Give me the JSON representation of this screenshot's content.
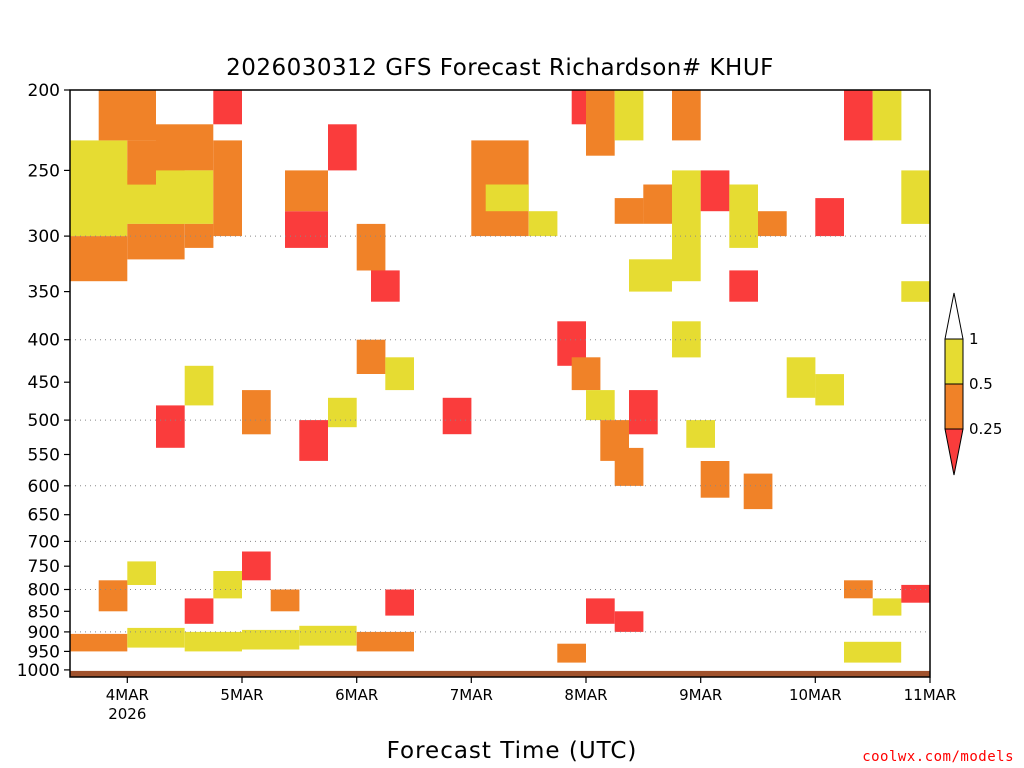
{
  "chart_data": {
    "type": "heatmap",
    "title": "2026030312 GFS Forecast Richardson# KHUF",
    "xlabel": "Forecast Time (UTC)",
    "ylabel": "",
    "x_ticks": [
      {
        "label": "4MAR",
        "sublabel": "2026",
        "hours": 12
      },
      {
        "label": "5MAR",
        "sublabel": "",
        "hours": 36
      },
      {
        "label": "6MAR",
        "sublabel": "",
        "hours": 60
      },
      {
        "label": "7MAR",
        "sublabel": "",
        "hours": 84
      },
      {
        "label": "8MAR",
        "sublabel": "",
        "hours": 108
      },
      {
        "label": "9MAR",
        "sublabel": "",
        "hours": 132
      },
      {
        "label": "10MAR",
        "sublabel": "",
        "hours": 156
      },
      {
        "label": "11MAR",
        "sublabel": "",
        "hours": 180
      }
    ],
    "x_range_hours": [
      0,
      180
    ],
    "y_ticks": [
      200,
      250,
      300,
      350,
      400,
      450,
      500,
      550,
      600,
      650,
      700,
      750,
      800,
      850,
      900,
      950,
      1000
    ],
    "y_range_hpa": [
      200,
      1020
    ],
    "y_scale": "log-pressure (inverted)",
    "dotted_gridlines_hpa": [
      300,
      400,
      500,
      600,
      700,
      800,
      900
    ],
    "legend": {
      "placement": "right",
      "bins": [
        {
          "label": "1",
          "color": "#ffffff",
          "range": [
            1,
            null
          ]
        },
        {
          "label": "0.5",
          "color": "#e6dc32",
          "range": [
            0.5,
            1
          ]
        },
        {
          "label": "0.25",
          "color": "#f08228",
          "range": [
            0.25,
            0.5
          ]
        },
        {
          "label": "",
          "color": "#fa3c3c",
          "range": [
            null,
            0.25
          ]
        }
      ]
    },
    "ground_color": "#a0522d",
    "cells": [
      [
        0,
        12,
        230,
        300,
        2
      ],
      [
        0,
        12,
        300,
        340,
        1
      ],
      [
        6,
        18,
        200,
        230,
        1
      ],
      [
        9,
        24,
        250,
        290,
        2
      ],
      [
        12,
        24,
        230,
        260,
        1
      ],
      [
        12,
        24,
        290,
        320,
        1
      ],
      [
        18,
        30,
        220,
        250,
        1
      ],
      [
        18,
        30,
        250,
        290,
        2
      ],
      [
        24,
        30,
        290,
        310,
        1
      ],
      [
        30,
        36,
        200,
        220,
        0
      ],
      [
        30,
        36,
        230,
        300,
        1
      ],
      [
        45,
        54,
        280,
        310,
        0
      ],
      [
        45,
        54,
        250,
        280,
        1
      ],
      [
        54,
        60,
        220,
        250,
        0
      ],
      [
        60,
        66,
        290,
        330,
        1
      ],
      [
        63,
        69,
        330,
        360,
        0
      ],
      [
        84,
        96,
        230,
        300,
        1
      ],
      [
        87,
        96,
        260,
        280,
        2
      ],
      [
        96,
        102,
        280,
        300,
        2
      ],
      [
        105,
        111,
        200,
        220,
        0
      ],
      [
        108,
        114,
        200,
        240,
        1
      ],
      [
        114,
        120,
        200,
        230,
        2
      ],
      [
        114,
        120,
        270,
        290,
        1
      ],
      [
        117,
        126,
        320,
        350,
        2
      ],
      [
        120,
        126,
        260,
        290,
        1
      ],
      [
        126,
        132,
        250,
        340,
        2
      ],
      [
        126,
        132,
        200,
        230,
        1
      ],
      [
        132,
        138,
        250,
        280,
        0
      ],
      [
        138,
        144,
        260,
        310,
        2
      ],
      [
        138,
        144,
        330,
        360,
        0
      ],
      [
        144,
        150,
        280,
        300,
        1
      ],
      [
        156,
        162,
        270,
        300,
        0
      ],
      [
        162,
        168,
        200,
        230,
        0
      ],
      [
        168,
        174,
        200,
        230,
        2
      ],
      [
        174,
        180,
        250,
        290,
        2
      ],
      [
        174,
        180,
        340,
        360,
        2
      ],
      [
        102,
        108,
        380,
        430,
        0
      ],
      [
        105,
        111,
        420,
        460,
        1
      ],
      [
        108,
        114,
        460,
        500,
        2
      ],
      [
        111,
        117,
        500,
        560,
        1
      ],
      [
        114,
        120,
        540,
        600,
        1
      ],
      [
        117,
        123,
        460,
        520,
        0
      ],
      [
        126,
        132,
        380,
        420,
        2
      ],
      [
        129,
        135,
        500,
        540,
        2
      ],
      [
        132,
        138,
        560,
        620,
        1
      ],
      [
        141,
        147,
        580,
        640,
        1
      ],
      [
        150,
        156,
        420,
        470,
        2
      ],
      [
        156,
        162,
        440,
        480,
        2
      ],
      [
        18,
        24,
        480,
        540,
        0
      ],
      [
        24,
        30,
        430,
        480,
        2
      ],
      [
        36,
        42,
        460,
        520,
        1
      ],
      [
        48,
        54,
        500,
        560,
        0
      ],
      [
        54,
        60,
        470,
        510,
        2
      ],
      [
        60,
        66,
        400,
        440,
        1
      ],
      [
        66,
        72,
        420,
        460,
        2
      ],
      [
        78,
        84,
        470,
        520,
        0
      ],
      [
        6,
        12,
        780,
        850,
        1
      ],
      [
        12,
        18,
        740,
        790,
        2
      ],
      [
        24,
        30,
        820,
        880,
        0
      ],
      [
        30,
        36,
        760,
        820,
        2
      ],
      [
        36,
        42,
        720,
        780,
        0
      ],
      [
        42,
        48,
        800,
        850,
        1
      ],
      [
        66,
        72,
        800,
        860,
        0
      ],
      [
        108,
        114,
        820,
        880,
        0
      ],
      [
        114,
        120,
        850,
        900,
        0
      ],
      [
        162,
        168,
        780,
        820,
        1
      ],
      [
        168,
        174,
        820,
        860,
        2
      ],
      [
        174,
        180,
        790,
        830,
        0
      ],
      [
        0,
        12,
        905,
        950,
        1
      ],
      [
        12,
        24,
        890,
        940,
        2
      ],
      [
        24,
        36,
        900,
        950,
        2
      ],
      [
        36,
        48,
        895,
        945,
        2
      ],
      [
        48,
        60,
        885,
        935,
        2
      ],
      [
        60,
        72,
        900,
        950,
        1
      ],
      [
        78,
        90,
        900,
        980,
        3
      ],
      [
        90,
        102,
        910,
        985,
        3
      ],
      [
        102,
        108,
        930,
        980,
        1
      ],
      [
        144,
        150,
        940,
        980,
        3
      ],
      [
        150,
        162,
        900,
        980,
        3
      ],
      [
        162,
        174,
        925,
        980,
        2
      ],
      [
        174,
        180,
        910,
        980,
        3
      ],
      [
        0,
        180,
        985,
        1000,
        3
      ],
      [
        120,
        144,
        955,
        985,
        3
      ],
      [
        0,
        60,
        970,
        990,
        3
      ]
    ]
  }
}
